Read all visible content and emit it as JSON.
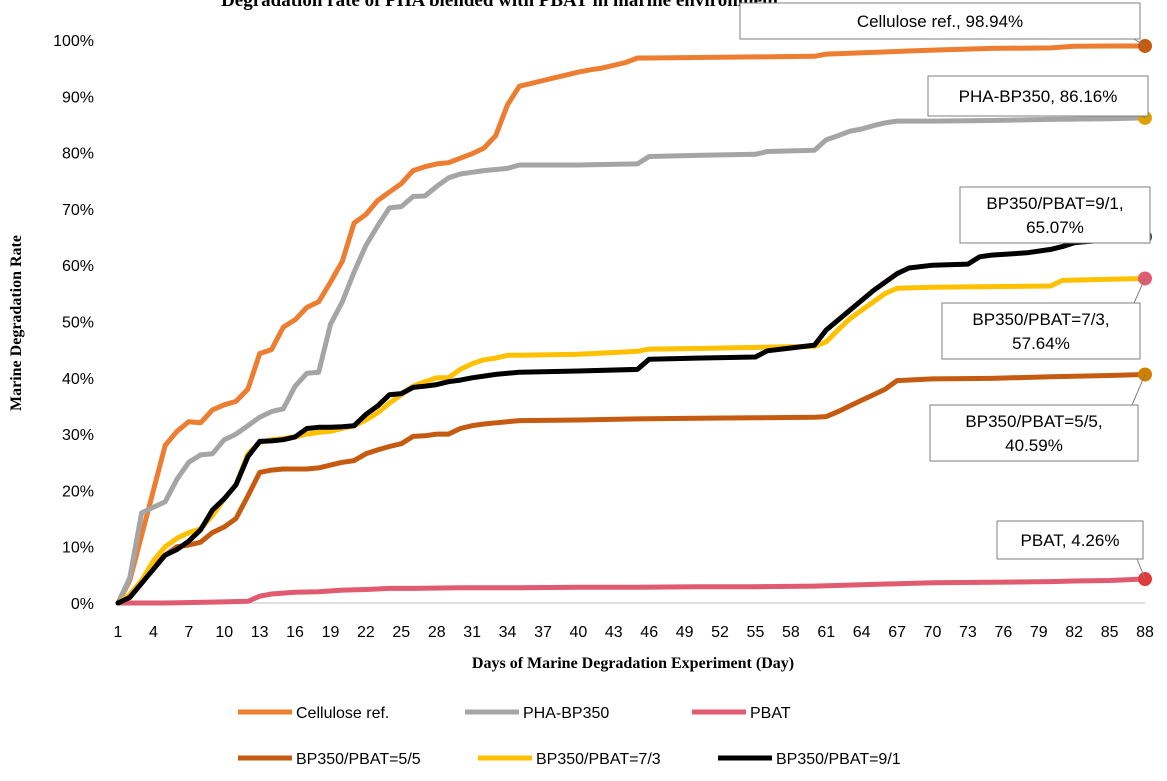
{
  "chart_data": {
    "type": "line",
    "title": "Degradation rate of PHA blended with PBAT in marine environment",
    "xlabel": "Days of Marine Degradation Experiment (Day)",
    "ylabel": "Marine Degradation Rate",
    "x_ticks": [
      1,
      4,
      7,
      10,
      13,
      16,
      19,
      22,
      25,
      28,
      31,
      34,
      37,
      40,
      43,
      46,
      49,
      52,
      55,
      58,
      61,
      64,
      67,
      70,
      73,
      76,
      79,
      82,
      85,
      88
    ],
    "y_ticks": [
      "0%",
      "10%",
      "20%",
      "30%",
      "40%",
      "50%",
      "60%",
      "70%",
      "80%",
      "90%",
      "100%"
    ],
    "xlim": [
      1,
      88
    ],
    "ylim": [
      0,
      100
    ],
    "grid": false,
    "legend": "bottom",
    "series": [
      {
        "name": "Cellulose ref.",
        "color": "#ED7D31",
        "marker_color": "#C55A11",
        "label": "Cellulose ref., 98.94%",
        "x": [
          1,
          2,
          3,
          4,
          5,
          6,
          7,
          8,
          9,
          10,
          11,
          12,
          13,
          14,
          15,
          16,
          17,
          18,
          19,
          20,
          21,
          22,
          23,
          24,
          25,
          26,
          27,
          28,
          29,
          30,
          31,
          32,
          33,
          34,
          35,
          36,
          37,
          38,
          39,
          40,
          41,
          42,
          43,
          44,
          45,
          46,
          50,
          55,
          60,
          61,
          65,
          70,
          75,
          80,
          82,
          85,
          88
        ],
        "values": [
          0,
          4,
          12,
          20,
          28,
          30.5,
          32.2,
          32,
          34.3,
          35.2,
          35.8,
          38,
          44.3,
          45,
          49,
          50.3,
          52.5,
          53.5,
          57,
          60.7,
          67.5,
          69,
          71.5,
          73,
          74.5,
          76.8,
          77.5,
          78,
          78.2,
          79,
          79.8,
          80.8,
          83,
          88.5,
          91.8,
          92.3,
          92.8,
          93.3,
          93.8,
          94.3,
          94.7,
          95,
          95.5,
          96,
          96.8,
          96.8,
          96.9,
          97,
          97.1,
          97.5,
          97.8,
          98.2,
          98.5,
          98.6,
          98.9,
          98.94,
          98.94
        ]
      },
      {
        "name": "PHA-BP350",
        "color": "#A5A5A5",
        "marker_color": "#E0A000",
        "label": "PHA-BP350, 86.16%",
        "x": [
          1,
          2,
          3,
          4,
          5,
          6,
          7,
          8,
          9,
          10,
          11,
          12,
          13,
          14,
          15,
          16,
          17,
          18,
          19,
          20,
          21,
          22,
          23,
          24,
          25,
          26,
          27,
          28,
          29,
          30,
          31,
          32,
          33,
          34,
          35,
          36,
          40,
          45,
          46,
          50,
          55,
          56,
          60,
          61,
          62,
          63,
          64,
          65,
          66,
          67,
          70,
          75,
          80,
          85,
          88
        ],
        "values": [
          0,
          4.5,
          16,
          17,
          18,
          22,
          25,
          26.3,
          26.5,
          29,
          30,
          31.5,
          33,
          34,
          34.5,
          38.5,
          40.8,
          41,
          49.5,
          53.5,
          58.8,
          63.5,
          67,
          70.2,
          70.4,
          72.2,
          72.3,
          74,
          75.5,
          76.2,
          76.5,
          76.8,
          77,
          77.2,
          77.8,
          77.8,
          77.8,
          78,
          79.3,
          79.5,
          79.7,
          80.2,
          80.4,
          82.3,
          83,
          83.8,
          84.2,
          84.8,
          85.3,
          85.6,
          85.6,
          85.7,
          85.9,
          86,
          86.16
        ]
      },
      {
        "name": "PBAT",
        "color": "#E05A70",
        "marker_color": "#E03A3A",
        "label": "PBAT, 4.26%",
        "x": [
          1,
          5,
          10,
          12,
          13,
          14,
          16,
          18,
          20,
          22,
          24,
          26,
          30,
          35,
          40,
          45,
          50,
          55,
          60,
          65,
          70,
          75,
          80,
          82,
          85,
          88
        ],
        "values": [
          0,
          0,
          0.2,
          0.3,
          1.2,
          1.6,
          1.9,
          2,
          2.3,
          2.4,
          2.6,
          2.6,
          2.7,
          2.7,
          2.8,
          2.8,
          2.9,
          2.9,
          3,
          3.3,
          3.6,
          3.7,
          3.8,
          3.9,
          4,
          4.26
        ]
      },
      {
        "name": "BP350/PBAT=5/5",
        "color": "#C55A11",
        "marker_color": "#D08000",
        "label": "BP350/PBAT=5/5, 40.59%",
        "x": [
          1,
          2,
          3,
          4,
          5,
          6,
          7,
          8,
          9,
          10,
          11,
          12,
          13,
          14,
          15,
          17,
          18,
          19,
          20,
          21,
          22,
          23,
          24,
          25,
          26,
          27,
          28,
          29,
          30,
          31,
          32,
          33,
          34,
          35,
          40,
          45,
          50,
          55,
          60,
          61,
          62,
          63,
          64,
          65,
          66,
          67,
          70,
          75,
          80,
          85,
          88
        ],
        "values": [
          0,
          1,
          3.5,
          6.5,
          8.5,
          10,
          10.3,
          10.8,
          12.5,
          13.5,
          15,
          19,
          23.2,
          23.6,
          23.8,
          23.8,
          24,
          24.5,
          25,
          25.3,
          26.5,
          27.2,
          27.8,
          28.3,
          29.6,
          29.7,
          30,
          30,
          31,
          31.5,
          31.8,
          32,
          32.2,
          32.4,
          32.5,
          32.7,
          32.8,
          32.9,
          33,
          33.1,
          34,
          35,
          36,
          37,
          38,
          39.5,
          39.8,
          39.9,
          40.2,
          40.4,
          40.59
        ]
      },
      {
        "name": "BP350/PBAT=7/3",
        "color": "#FFC000",
        "marker_color": "#E05A70",
        "label": "BP350/PBAT=7/3, 57.64%",
        "x": [
          1,
          2,
          3,
          4,
          5,
          6,
          7,
          8,
          9,
          10,
          11,
          12,
          13,
          14,
          15,
          16,
          17,
          18,
          19,
          20,
          21,
          22,
          23,
          24,
          25,
          26,
          27,
          28,
          29,
          30,
          31,
          32,
          33,
          34,
          35,
          40,
          45,
          46,
          50,
          55,
          60,
          61,
          62,
          63,
          64,
          65,
          66,
          67,
          70,
          75,
          80,
          81,
          85,
          88
        ],
        "values": [
          0,
          1.5,
          4,
          7.5,
          10,
          11.5,
          12.5,
          13.2,
          15.5,
          18.5,
          21,
          26.5,
          28.5,
          29,
          29.2,
          29.5,
          30,
          30.3,
          30.5,
          31,
          31.5,
          32.5,
          33.8,
          35.5,
          37,
          38.5,
          39.3,
          40,
          40,
          41.5,
          42.5,
          43.2,
          43.5,
          44,
          44,
          44.2,
          44.7,
          45.1,
          45.2,
          45.4,
          45.6,
          46.4,
          48.5,
          50.5,
          52,
          53.5,
          55,
          55.9,
          56.1,
          56.2,
          56.3,
          57.3,
          57.5,
          57.64
        ]
      },
      {
        "name": "BP350/PBAT=9/1",
        "color": "#000000",
        "marker_color": "#404040",
        "label": "BP350/PBAT=9/1, 65.07%",
        "x": [
          1,
          2,
          3,
          4,
          5,
          6,
          7,
          8,
          9,
          10,
          11,
          12,
          13,
          14,
          15,
          16,
          17,
          18,
          19,
          20,
          21,
          22,
          23,
          24,
          25,
          26,
          27,
          28,
          29,
          30,
          31,
          32,
          33,
          34,
          35,
          40,
          45,
          46,
          50,
          55,
          56,
          58,
          60,
          61,
          63,
          65,
          67,
          68,
          70,
          73,
          74,
          75,
          78,
          80,
          81,
          82,
          83,
          85,
          88
        ],
        "values": [
          0,
          1,
          3.5,
          6,
          8.5,
          9.5,
          11,
          13,
          16.5,
          18.5,
          21,
          26,
          28.7,
          28.8,
          29,
          29.5,
          31,
          31.2,
          31.2,
          31.3,
          31.5,
          33.5,
          35,
          37,
          37.2,
          38.3,
          38.5,
          38.8,
          39.3,
          39.6,
          40,
          40.3,
          40.6,
          40.8,
          41,
          41.2,
          41.5,
          43.3,
          43.5,
          43.7,
          44.8,
          45.3,
          45.8,
          48.5,
          52,
          55.5,
          58.5,
          59.5,
          60,
          60.2,
          61.5,
          61.8,
          62.2,
          62.8,
          63.3,
          64,
          64.2,
          64.5,
          65.07
        ]
      }
    ]
  }
}
